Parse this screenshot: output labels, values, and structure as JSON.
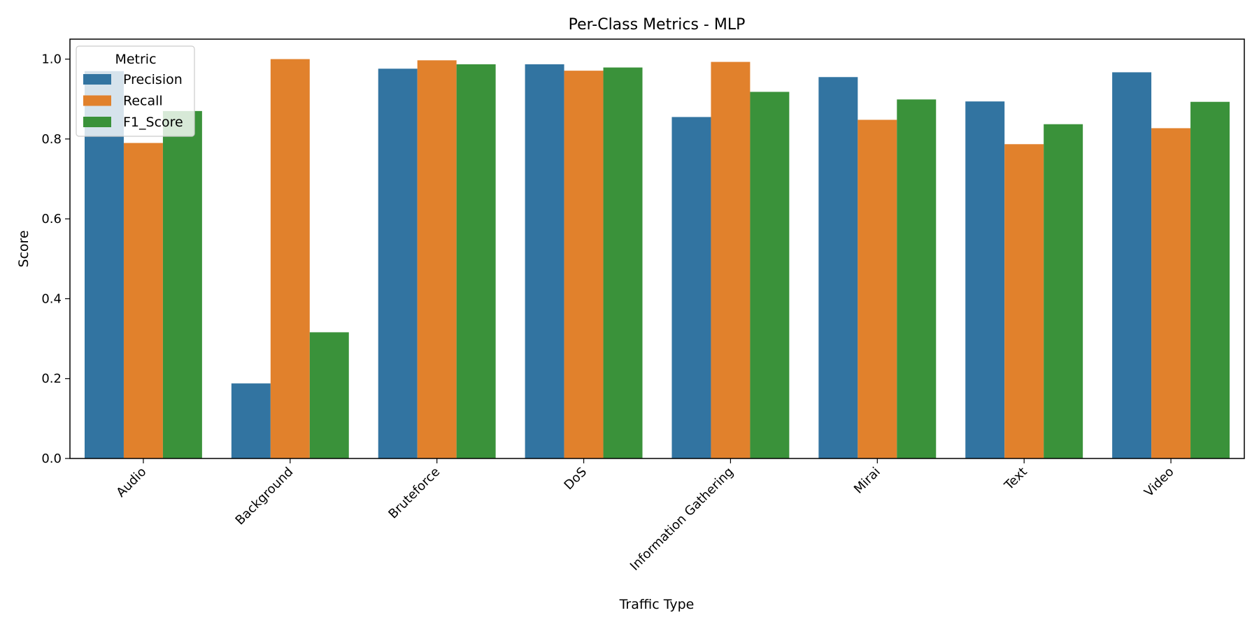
{
  "chart_data": {
    "type": "bar",
    "title": "Per-Class Metrics - MLP",
    "xlabel": "Traffic Type",
    "ylabel": "Score",
    "ylim": [
      0,
      1.05
    ],
    "yticks": [
      "0.0",
      "0.2",
      "0.4",
      "0.6",
      "0.8",
      "1.0"
    ],
    "grid": false,
    "legend": {
      "title": "Metric",
      "placement": "top-left"
    },
    "categories": [
      "Audio",
      "Background",
      "Bruteforce",
      "DoS",
      "Information Gathering",
      "Mirai",
      "Text",
      "Video"
    ],
    "series": [
      {
        "name": "Precision",
        "color": "#3274a1",
        "values": [
          0.97,
          0.188,
          0.976,
          0.987,
          0.855,
          0.955,
          0.894,
          0.967
        ]
      },
      {
        "name": "Recall",
        "color": "#e1812c",
        "values": [
          0.79,
          1.0,
          0.997,
          0.971,
          0.993,
          0.848,
          0.787,
          0.827
        ]
      },
      {
        "name": "F1_Score",
        "color": "#3a923a",
        "values": [
          0.87,
          0.316,
          0.987,
          0.979,
          0.918,
          0.899,
          0.837,
          0.893
        ]
      }
    ]
  }
}
